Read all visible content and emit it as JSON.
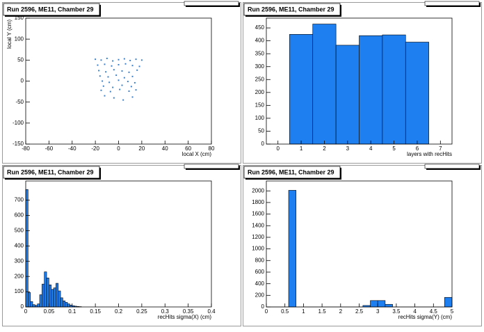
{
  "chart_data": [
    {
      "type": "scatter",
      "title": "Run 2596, ME11, Chamber 29",
      "x_label": "local X (cm)",
      "y_label": "local Y (cm)",
      "color": "#3a80c8",
      "x": [
        -20,
        -15,
        -10,
        -5,
        0,
        5,
        10,
        15,
        20,
        -18,
        -12,
        -6,
        0,
        6,
        12,
        18,
        -17,
        -11,
        -4,
        3,
        9,
        16,
        -16,
        -9,
        -2,
        5,
        12,
        -14,
        -8,
        0,
        8,
        14,
        -13,
        -5,
        3,
        11,
        -15,
        -7,
        1,
        9,
        15,
        -12,
        -4,
        4,
        12
      ],
      "y": [
        52,
        50,
        54,
        48,
        51,
        53,
        49,
        52,
        50,
        38,
        40,
        36,
        39,
        41,
        37,
        35,
        25,
        22,
        27,
        24,
        21,
        26,
        12,
        10,
        14,
        8,
        11,
        0,
        -3,
        2,
        -1,
        -4,
        -12,
        -15,
        -10,
        -13,
        -22,
        -25,
        -20,
        -24,
        -21,
        -35,
        -40,
        -45,
        -38
      ],
      "xlim": [
        -80,
        80
      ],
      "xticks": [
        -80,
        -60,
        -40,
        -20,
        0,
        20,
        40,
        60,
        80
      ],
      "ylim": [
        -150,
        150
      ],
      "yticks": [
        -150,
        -100,
        -50,
        0,
        50,
        100,
        150
      ]
    },
    {
      "type": "histogram",
      "title": "Run 2596, ME11, Chamber 29",
      "x_label": "layers with recHits",
      "color": "#1e7ff0",
      "bins": [
        0.5,
        1.5,
        2.5,
        3.5,
        4.5,
        5.5,
        6.5
      ],
      "values": [
        425,
        465,
        383,
        420,
        423,
        395
      ],
      "xlim": [
        -0.5,
        7.5
      ],
      "xticks": [
        0,
        1,
        2,
        3,
        4,
        5,
        6,
        7
      ],
      "ylim": [
        0,
        488
      ],
      "yticks": [
        0,
        50,
        100,
        150,
        200,
        250,
        300,
        350,
        400,
        450
      ]
    },
    {
      "type": "histogram",
      "title": "Run 2596, ME11, Chamber 29",
      "x_label": "recHits sigma(X) (cm)",
      "color": "#1e7ff0",
      "bins": [
        0,
        0.005,
        0.01,
        0.015,
        0.02,
        0.025,
        0.03,
        0.035,
        0.04,
        0.045,
        0.05,
        0.055,
        0.06,
        0.065,
        0.07,
        0.075,
        0.08,
        0.085,
        0.09,
        0.095,
        0.1,
        0.105,
        0.11,
        0.115,
        0.12
      ],
      "values": [
        770,
        95,
        35,
        15,
        10,
        20,
        80,
        150,
        230,
        190,
        145,
        115,
        125,
        155,
        105,
        60,
        40,
        30,
        20,
        12,
        8,
        5,
        3,
        2
      ],
      "xlim": [
        0,
        0.4
      ],
      "xticks": [
        0,
        0.05,
        0.1,
        0.15,
        0.2,
        0.25,
        0.3,
        0.35,
        0.4
      ],
      "ylim": [
        0,
        826
      ],
      "yticks": [
        0,
        100,
        200,
        300,
        400,
        500,
        600,
        700
      ]
    },
    {
      "type": "histogram",
      "title": "Run 2596, ME11, Chamber 29",
      "x_label": "recHits sigma(Y) (cm)",
      "color": "#1e7ff0",
      "bins": [
        0,
        0.2,
        0.4,
        0.6,
        0.8,
        1,
        1.2,
        1.4,
        1.6,
        1.8,
        2,
        2.2,
        2.4,
        2.6,
        2.8,
        3,
        3.2,
        3.4,
        3.6,
        3.8,
        4,
        4.2,
        4.4,
        4.6,
        4.8,
        5
      ],
      "values": [
        0,
        0,
        0,
        2010,
        0,
        0,
        0,
        0,
        0,
        0,
        0,
        0,
        0,
        25,
        110,
        110,
        45,
        0,
        0,
        0,
        0,
        0,
        0,
        0,
        165
      ],
      "xlim": [
        0,
        5
      ],
      "xticks": [
        0,
        0.5,
        1,
        1.5,
        2,
        2.5,
        3,
        3.5,
        4,
        4.5,
        5
      ],
      "ylim": [
        0,
        2171
      ],
      "yticks": [
        0,
        200,
        400,
        600,
        800,
        1000,
        1200,
        1400,
        1600,
        1800,
        2000
      ]
    }
  ]
}
